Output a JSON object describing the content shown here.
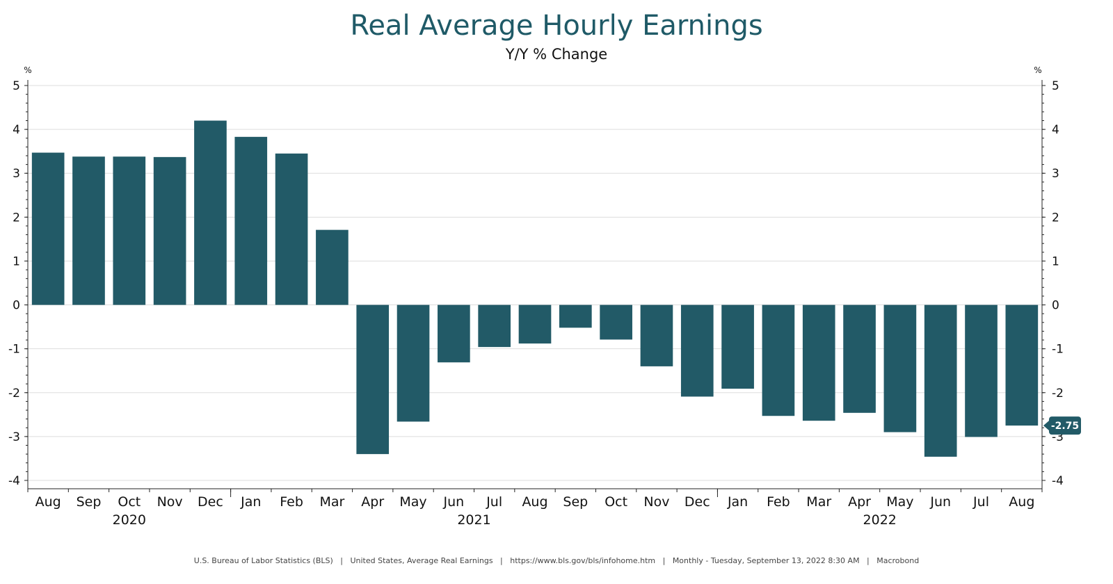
{
  "chart_data": {
    "type": "bar",
    "title": "Real Average Hourly Earnings",
    "subtitle": "Y/Y % Change",
    "xlabel": "",
    "ylabel": "%",
    "ylim": [
      -4,
      5
    ],
    "yticks": [
      "5",
      "4",
      "3",
      "2",
      "1",
      "0",
      "-1",
      "-2",
      "-3",
      "-4"
    ],
    "categories": [
      "Aug",
      "Sep",
      "Oct",
      "Nov",
      "Dec",
      "Jan",
      "Feb",
      "Mar",
      "Apr",
      "May",
      "Jun",
      "Jul",
      "Aug",
      "Sep",
      "Oct",
      "Nov",
      "Dec",
      "Jan",
      "Feb",
      "Mar",
      "Apr",
      "May",
      "Jun",
      "Jul",
      "Aug"
    ],
    "years": [
      {
        "label": "2020",
        "start": 0,
        "end": 4
      },
      {
        "label": "2021",
        "start": 5,
        "end": 16
      },
      {
        "label": "2022",
        "start": 17,
        "end": 24
      }
    ],
    "series": [
      {
        "name": "United States, Average Real Earnings",
        "color": "#225a67",
        "values": [
          3.47,
          3.38,
          3.38,
          3.37,
          4.2,
          3.83,
          3.45,
          1.71,
          -3.4,
          -2.66,
          -1.31,
          -0.96,
          -0.88,
          -0.52,
          -0.79,
          -1.4,
          -2.09,
          -1.91,
          -2.53,
          -2.64,
          -2.46,
          -2.9,
          -3.46,
          -3.01,
          -2.75
        ]
      }
    ],
    "last_value_label": "-2.75",
    "grid": true,
    "legend": "none"
  },
  "footer": "U.S. Bureau of Labor Statistics (BLS)   |   United States, Average Real Earnings   |   https://www.bls.gov/bls/infohome.htm   |   Monthly - Tuesday, September 13, 2022 8:30 AM   |   Macrobond"
}
